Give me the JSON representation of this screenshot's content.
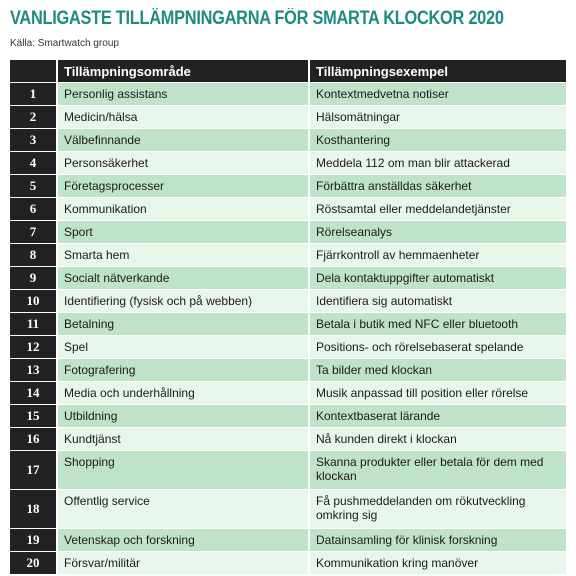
{
  "title": "VANLIGASTE TILLÄMPNINGARNA FÖR SMARTA KLOCKOR 2020",
  "source": "Källa: Smartwatch group",
  "table": {
    "headers": [
      "",
      "Tillämpningsområde",
      "Tillämpningsexempel"
    ],
    "rows": [
      {
        "num": "1",
        "area": "Personlig assistans",
        "example": "Kontextmedvetna notiser"
      },
      {
        "num": "2",
        "area": "Medicin/hälsa",
        "example": "Hälsomätningar"
      },
      {
        "num": "3",
        "area": "Välbefinnande",
        "example": "Kosthantering"
      },
      {
        "num": "4",
        "area": "Personsäkerhet",
        "example": "Meddela 112 om man blir attackerad"
      },
      {
        "num": "5",
        "area": "Företagsprocesser",
        "example": "Förbättra anställdas säkerhet"
      },
      {
        "num": "6",
        "area": "Kommunikation",
        "example": "Röstsamtal eller meddelandetjänster"
      },
      {
        "num": "7",
        "area": "Sport",
        "example": "Rörelseanalys"
      },
      {
        "num": "8",
        "area": "Smarta hem",
        "example": "Fjärrkontroll av hemmaenheter"
      },
      {
        "num": "9",
        "area": "Socialt nätverkande",
        "example": "Dela kontaktuppgifter automatiskt"
      },
      {
        "num": "10",
        "area": "Identifiering (fysisk och på webben)",
        "example": "Identifiera sig automatiskt"
      },
      {
        "num": "11",
        "area": "Betalning",
        "example": "Betala i butik med NFC eller bluetooth"
      },
      {
        "num": "12",
        "area": "Spel",
        "example": "Positions- och rörelsebaserat spelande"
      },
      {
        "num": "13",
        "area": "Fotografering",
        "example": "Ta bilder med klockan"
      },
      {
        "num": "14",
        "area": "Media och underhållning",
        "example": "Musik anpassad till position eller rörelse"
      },
      {
        "num": "15",
        "area": "Utbildning",
        "example": "Kontextbaserat lärande"
      },
      {
        "num": "16",
        "area": "Kundtjänst",
        "example": "Nå kunden direkt i klockan"
      },
      {
        "num": "17",
        "area": "Shopping",
        "example": "Skanna produkter eller betala för dem med klockan"
      },
      {
        "num": "18",
        "area": "Offentlig service",
        "example": "Få pushmeddelanden om rökutveckling omkring sig"
      },
      {
        "num": "19",
        "area": "Vetenskap och forskning",
        "example": "Datainsamling för klinisk forskning"
      },
      {
        "num": "20",
        "area": "Försvar/militär",
        "example": "Kommunikation kring manöver"
      }
    ]
  },
  "colors": {
    "title": "#1f8a83",
    "header_bg": "#222222",
    "row_dark": "#bfe3c8",
    "row_light": "#e8f5ea"
  }
}
